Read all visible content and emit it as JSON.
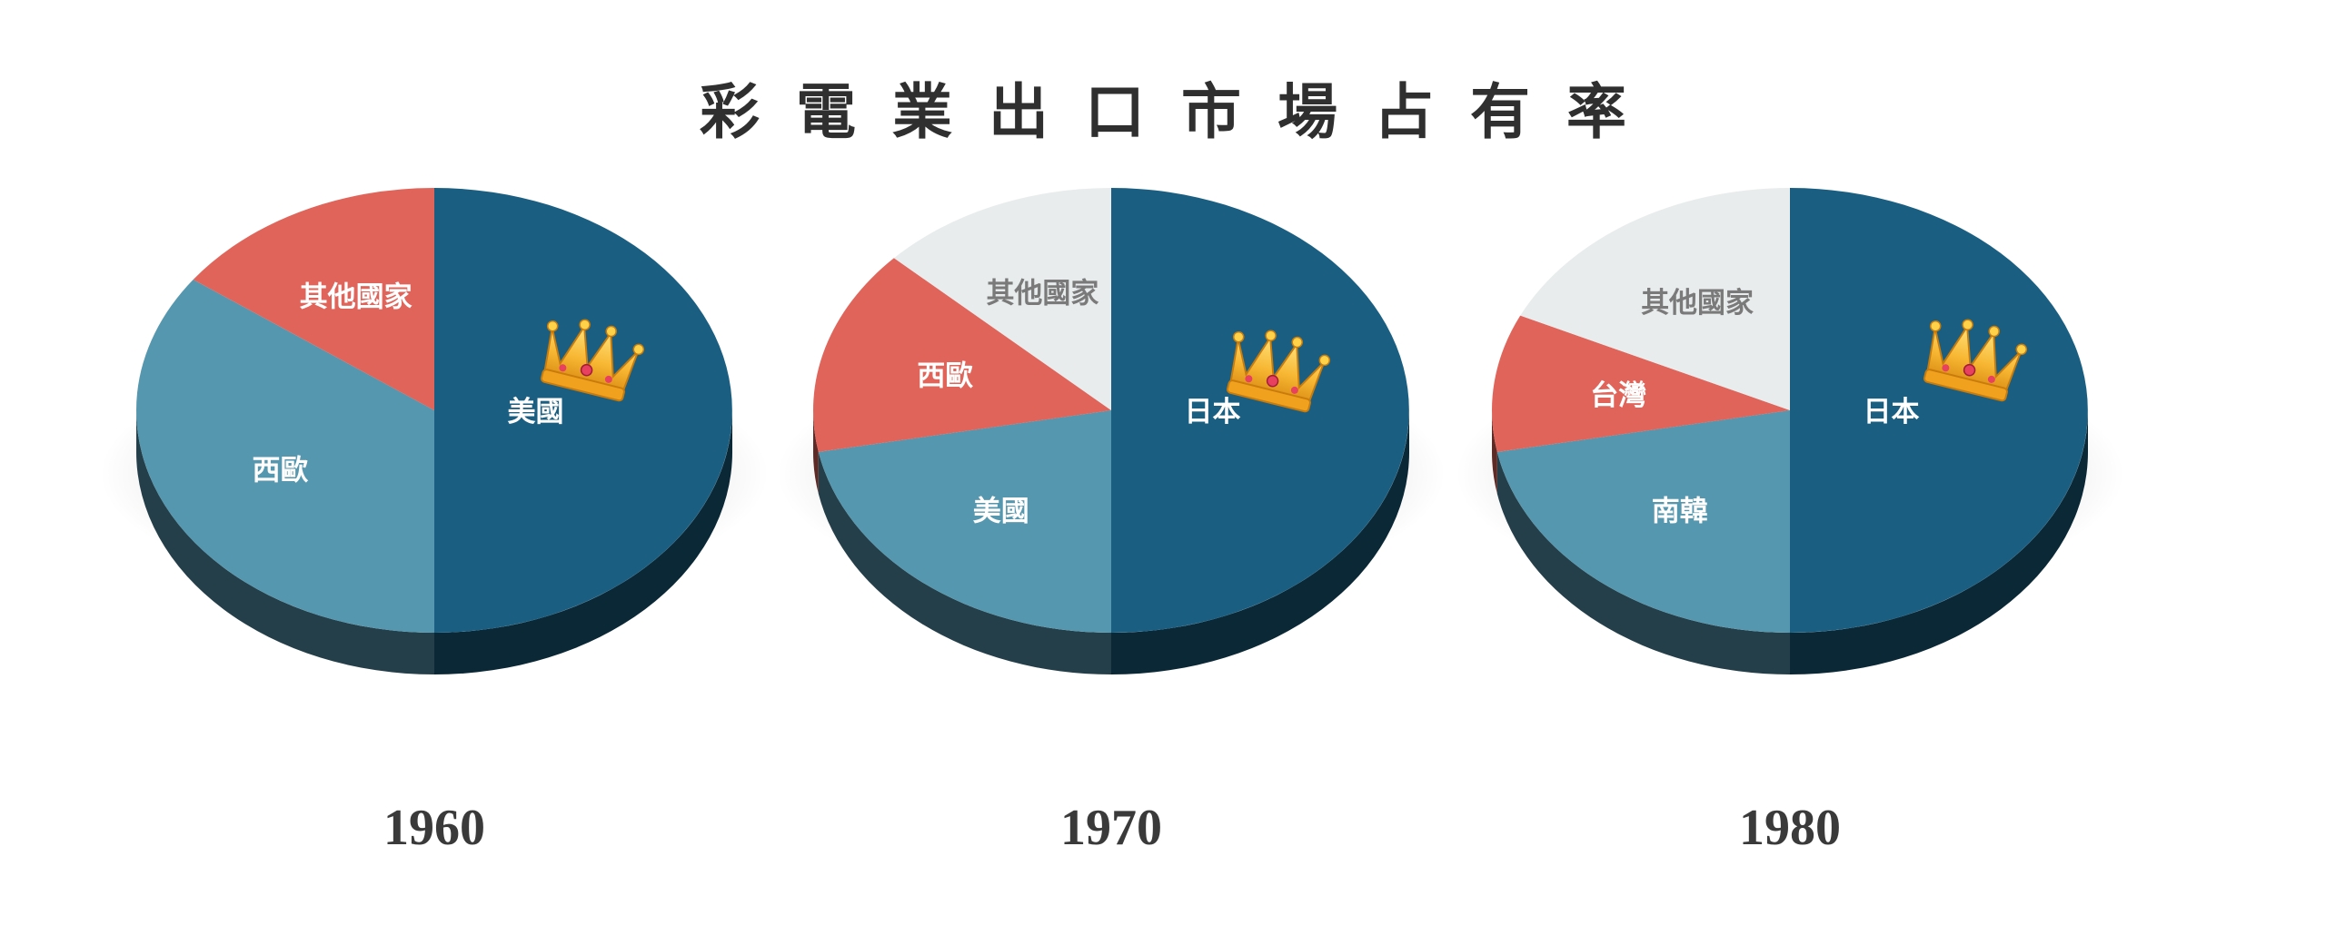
{
  "title": "彩電業出口市場占有率",
  "colors": {
    "dark_blue": "#1a5f82",
    "light_blue": "#5597ae",
    "red": "#e0645a",
    "light_gray": "#e8eced",
    "label_light": "#ffffff",
    "label_dark": "#7a7a7a"
  },
  "chart_data": [
    {
      "type": "pie",
      "title": "1960",
      "crown_icon": "crown-icon",
      "leader": "美國",
      "slices": [
        {
          "label": "美國",
          "value": 50,
          "color": "#1a5f82"
        },
        {
          "label": "西歐",
          "value": 35,
          "color": "#5597ae"
        },
        {
          "label": "其他國家",
          "value": 15,
          "color": "#e0645a"
        }
      ]
    },
    {
      "type": "pie",
      "title": "1970",
      "crown_icon": "crown-icon",
      "leader": "日本",
      "slices": [
        {
          "label": "日本",
          "value": 50,
          "color": "#1a5f82"
        },
        {
          "label": "美國",
          "value": 22,
          "color": "#5597ae"
        },
        {
          "label": "西歐",
          "value": 15,
          "color": "#e0645a"
        },
        {
          "label": "其他國家",
          "value": 13,
          "color": "#e8eced"
        }
      ]
    },
    {
      "type": "pie",
      "title": "1980",
      "crown_icon": "crown-icon",
      "leader": "日本",
      "slices": [
        {
          "label": "日本",
          "value": 50,
          "color": "#1a5f82"
        },
        {
          "label": "南韓",
          "value": 22,
          "color": "#5597ae"
        },
        {
          "label": "台灣",
          "value": 10,
          "color": "#e0645a"
        },
        {
          "label": "其他國家",
          "value": 18,
          "color": "#e8eced"
        }
      ]
    }
  ]
}
